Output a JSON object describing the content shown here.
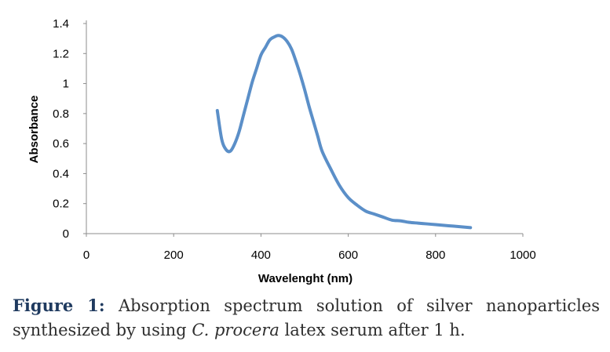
{
  "chart_data": {
    "type": "line",
    "title": "",
    "xlabel": "Wavelenght (nm)",
    "ylabel": "Absorbance",
    "xlim": [
      0,
      1000
    ],
    "ylim": [
      0,
      1.4
    ],
    "xticks": [
      0,
      200,
      400,
      600,
      800,
      1000
    ],
    "yticks": [
      0,
      0.2,
      0.4,
      0.6,
      0.8,
      1,
      1.2,
      1.4
    ],
    "xtick_labels": [
      "0",
      "200",
      "400",
      "600",
      "800",
      "1000"
    ],
    "ytick_labels": [
      "0",
      "0.2",
      "0.4",
      "0.6",
      "0.8",
      "1",
      "1.2",
      "1.4"
    ],
    "grid": false,
    "legend": "none",
    "series": [
      {
        "color": "#5b8fc8",
        "x": [
          300,
          310,
          320,
          330,
          340,
          350,
          360,
          370,
          380,
          390,
          400,
          410,
          420,
          430,
          440,
          450,
          460,
          470,
          480,
          490,
          500,
          510,
          520,
          530,
          540,
          560,
          580,
          600,
          620,
          640,
          660,
          680,
          700,
          720,
          740,
          760,
          780,
          800,
          820,
          840,
          860,
          880
        ],
        "y": [
          0.82,
          0.63,
          0.56,
          0.55,
          0.6,
          0.68,
          0.79,
          0.9,
          1.01,
          1.1,
          1.19,
          1.24,
          1.29,
          1.31,
          1.32,
          1.31,
          1.28,
          1.23,
          1.15,
          1.06,
          0.96,
          0.85,
          0.75,
          0.65,
          0.55,
          0.43,
          0.32,
          0.24,
          0.19,
          0.15,
          0.13,
          0.11,
          0.09,
          0.085,
          0.075,
          0.07,
          0.065,
          0.06,
          0.055,
          0.05,
          0.045,
          0.04
        ]
      }
    ]
  },
  "caption": {
    "label": "Figure 1:",
    "text_before": " Absorption spectrum solution of silver nanoparticles synthesized by using ",
    "species": "C. procera",
    "text_after": " latex serum after 1 h."
  }
}
